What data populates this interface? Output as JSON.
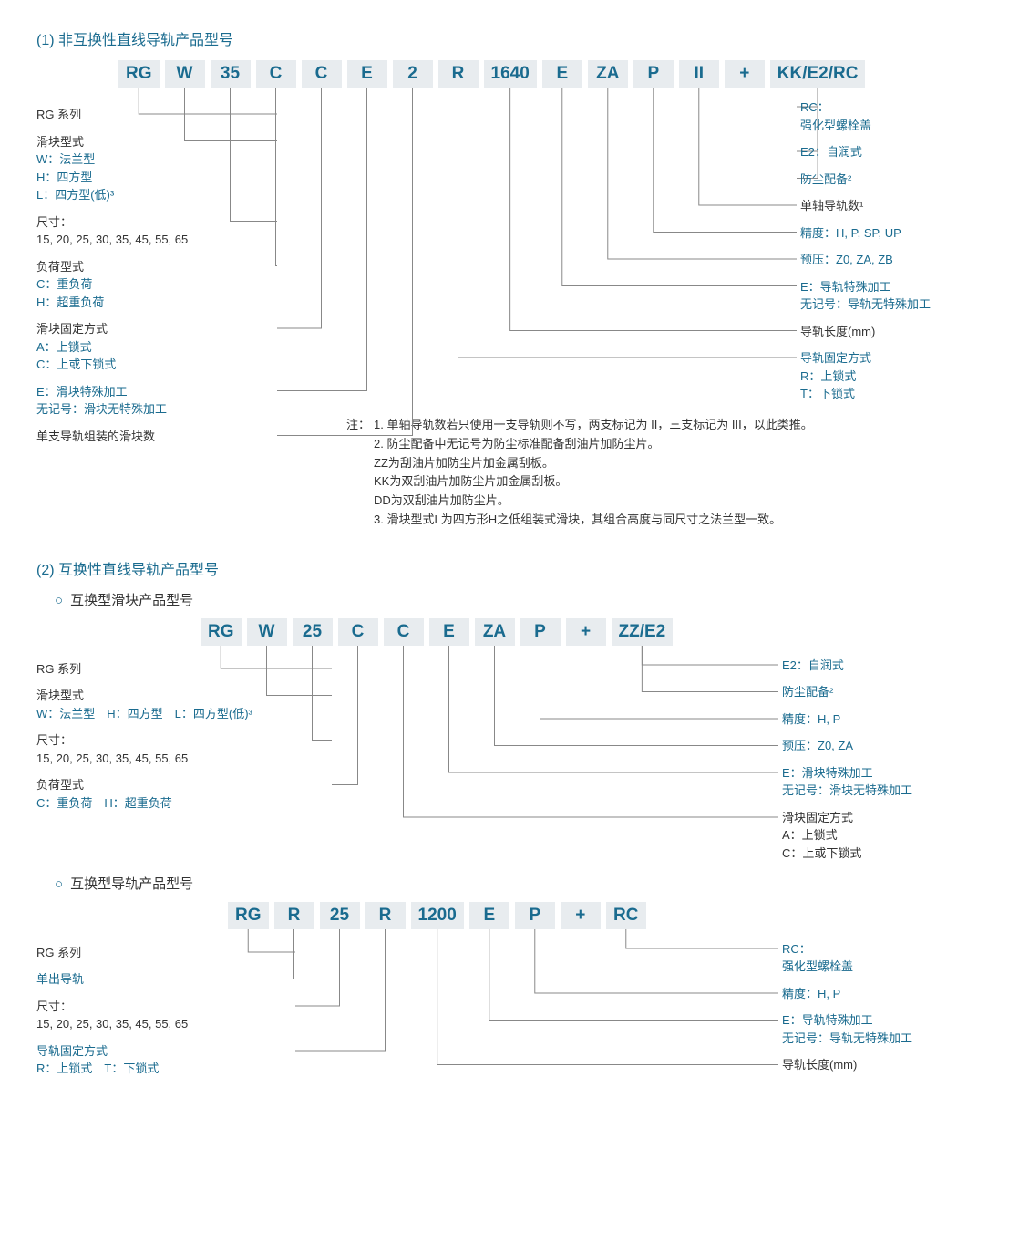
{
  "line_color": "#888",
  "section1": {
    "title": "(1) 非互换性直线导轨产品型号",
    "codes": [
      "RG",
      "W",
      "35",
      "C",
      "C",
      "E",
      "2",
      "R",
      "1640",
      "E",
      "ZA",
      "P",
      "II",
      "+",
      "KK/E2/RC"
    ],
    "left": [
      {
        "black": "RG 系列",
        "blue": []
      },
      {
        "black": "滑块型式",
        "blue": [
          "W：法兰型",
          "H：四方型",
          "L：四方型(低)³"
        ]
      },
      {
        "black": "尺寸：",
        "blue": [],
        "extra": "15, 20, 25, 30, 35, 45, 55, 65"
      },
      {
        "black": "负荷型式",
        "blue": [
          "C：重负荷",
          "H：超重负荷"
        ]
      },
      {
        "black": "滑块固定方式",
        "blue": [
          "A：上锁式",
          "C：上或下锁式"
        ]
      },
      {
        "black": "",
        "blue": [
          "E：滑块特殊加工",
          "无记号：滑块无特殊加工"
        ]
      },
      {
        "black": "单支导轨组装的滑块数",
        "blue": []
      }
    ],
    "right": [
      {
        "black": "",
        "blue": [
          "RC：",
          "强化型螺栓盖"
        ]
      },
      {
        "black": "",
        "blue": [
          "E2：自润式"
        ]
      },
      {
        "black": "",
        "blue": [
          "防尘配备²"
        ]
      },
      {
        "black": "单轴导轨数¹",
        "blue": []
      },
      {
        "black": "",
        "blue": [
          "精度：H, P, SP, UP"
        ]
      },
      {
        "black": "",
        "blue": [
          "预压：Z0, ZA, ZB"
        ]
      },
      {
        "black": "",
        "blue": [
          "E：导轨特殊加工",
          "无记号：导轨无特殊加工"
        ]
      },
      {
        "black": "导轨长度(mm)",
        "blue": []
      },
      {
        "black": "",
        "blue": [
          "导轨固定方式",
          "R：上锁式",
          "T：下锁式"
        ]
      }
    ],
    "notes_prefix": "注：",
    "notes": [
      "1. 单轴导轨数若只使用一支导轨则不写，两支标记为 II，三支标记为 III，以此类推。",
      "2. 防尘配备中无记号为防尘标准配备刮油片加防尘片。",
      "   ZZ为刮油片加防尘片加金属刮板。",
      "   KK为双刮油片加防尘片加金属刮板。",
      "   DD为双刮油片加防尘片。",
      "3. 滑块型式L为四方形H之低组装式滑块，其组合高度与同尺寸之法兰型一致。"
    ]
  },
  "section2": {
    "title": "(2) 互换性直线导轨产品型号",
    "sub1": "互换型滑块产品型号",
    "codes1": [
      "RG",
      "W",
      "25",
      "C",
      "C",
      "E",
      "ZA",
      "P",
      "+",
      "ZZ/E2"
    ],
    "left1": [
      {
        "black": "RG 系列",
        "blue": []
      },
      {
        "black": "滑块型式",
        "blue": [],
        "inline": "W：法兰型　H：四方型　L：四方型(低)³"
      },
      {
        "black": "尺寸：",
        "blue": [],
        "extra": "15, 20, 25, 30, 35, 45, 55, 65"
      },
      {
        "black": "负荷型式",
        "blue": [],
        "inline": "C：重负荷　H：超重负荷"
      }
    ],
    "right1": [
      {
        "black": "",
        "blue": [
          "E2：自润式"
        ]
      },
      {
        "black": "",
        "blue": [
          "防尘配备²"
        ]
      },
      {
        "black": "",
        "blue": [
          "精度：H, P"
        ]
      },
      {
        "black": "",
        "blue": [
          "预压：Z0, ZA"
        ]
      },
      {
        "black": "",
        "blue": [
          "E：滑块特殊加工",
          "无记号：滑块无特殊加工"
        ]
      },
      {
        "black": "滑块固定方式",
        "blue": [],
        "extra2": [
          "A：上锁式",
          "C：上或下锁式"
        ]
      }
    ],
    "sub2": "互换型导轨产品型号",
    "codes2": [
      "RG",
      "R",
      "25",
      "R",
      "1200",
      "E",
      "P",
      "+",
      "RC"
    ],
    "left2": [
      {
        "black": "RG 系列",
        "blue": []
      },
      {
        "black": "",
        "blue": [
          "单出导轨"
        ]
      },
      {
        "black": "尺寸：",
        "blue": [],
        "extra": "15, 20, 25, 30, 35, 45, 55, 65"
      },
      {
        "black": "",
        "blue": [
          "导轨固定方式"
        ],
        "inline": "R：上锁式　T：下锁式"
      }
    ],
    "right2": [
      {
        "black": "",
        "blue": [
          "RC：",
          "强化型螺栓盖"
        ]
      },
      {
        "black": "",
        "blue": [
          "精度：H, P"
        ]
      },
      {
        "black": "",
        "blue": [
          "E：导轨特殊加工",
          "无记号：导轨无特殊加工"
        ]
      },
      {
        "black": "导轨长度(mm)",
        "blue": []
      }
    ]
  }
}
